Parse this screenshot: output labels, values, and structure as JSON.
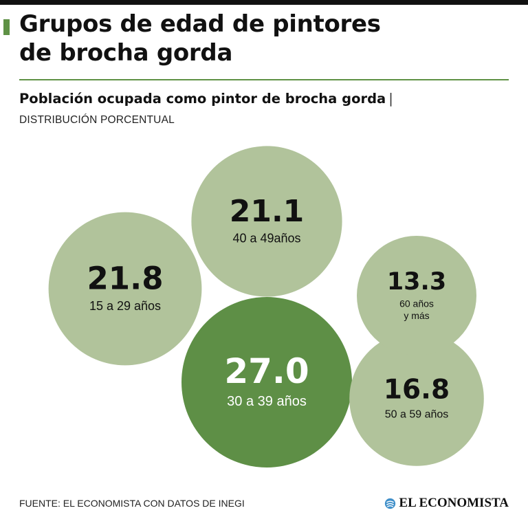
{
  "header": {
    "title_line1": "Grupos de edad de pintores",
    "title_line2": "de brocha gorda",
    "subtitle": "Población ocupada como pintor de brocha gorda",
    "separator": "|",
    "unit_label": "DISTRIBUCIÓN PORCENTUAL"
  },
  "colors": {
    "accent": "#5e9145",
    "bubble_light": "#b1c39b",
    "bubble_dark": "#5e8f46",
    "text_dark": "#111111",
    "text_on_dark": "#ffffff"
  },
  "chart_data": {
    "type": "bubble",
    "value_format": "0.0",
    "categories": [
      "15 a 29 años",
      "30 a 39 años",
      "40 a 49años",
      "50 a 59 años",
      "60 años y más"
    ],
    "values": [
      21.8,
      27.0,
      21.1,
      16.8,
      13.3
    ],
    "label_lines": [
      [
        "15 a 29 años"
      ],
      [
        "30 a 39 años"
      ],
      [
        "40 a 49años"
      ],
      [
        "50 a 59 años"
      ],
      [
        "60 años",
        "y más"
      ]
    ],
    "highlight": "30 a 39 años"
  },
  "footer": {
    "source": "FUENTE: EL ECONOMISTA CON DATOS DE INEGI",
    "brand": "EL ECONOMISTA",
    "brand_icon": "el-economista-swirl-icon"
  }
}
